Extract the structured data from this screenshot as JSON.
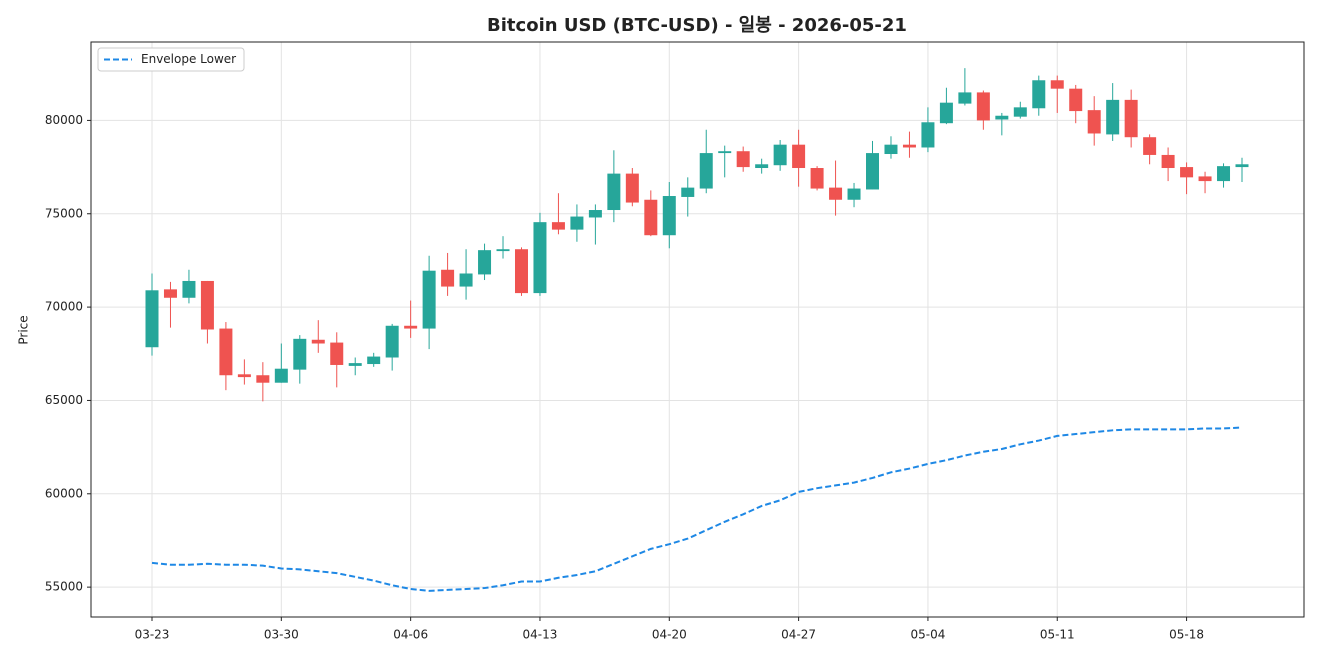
{
  "chart_data": {
    "type": "candlestick",
    "title": "Bitcoin USD (BTC-USD) - 일봉 - 2026-05-21",
    "ylabel": "Price",
    "grid": true,
    "legend": "upper left",
    "up_color": "#26a69a",
    "down_color": "#ef5350",
    "ylim": [
      53400,
      84200
    ],
    "yticks": [
      55000,
      60000,
      65000,
      70000,
      75000,
      80000
    ],
    "xticks": [
      "03-23",
      "03-30",
      "04-06",
      "04-13",
      "04-20",
      "04-27",
      "05-04",
      "05-11",
      "05-18"
    ],
    "x": [
      "03-23",
      "03-24",
      "03-25",
      "03-26",
      "03-27",
      "03-28",
      "03-29",
      "03-30",
      "03-31",
      "04-01",
      "04-02",
      "04-03",
      "04-04",
      "04-05",
      "04-06",
      "04-07",
      "04-08",
      "04-09",
      "04-10",
      "04-11",
      "04-12",
      "04-13",
      "04-14",
      "04-15",
      "04-16",
      "04-17",
      "04-18",
      "04-19",
      "04-20",
      "04-21",
      "04-22",
      "04-23",
      "04-24",
      "04-25",
      "04-26",
      "04-27",
      "04-28",
      "04-29",
      "04-30",
      "05-01",
      "05-02",
      "05-03",
      "05-04",
      "05-05",
      "05-06",
      "05-07",
      "05-08",
      "05-09",
      "05-10",
      "05-11",
      "05-12",
      "05-13",
      "05-14",
      "05-15",
      "05-16",
      "05-17",
      "05-18",
      "05-19",
      "05-20",
      "05-21"
    ],
    "open": [
      67850,
      70950,
      70500,
      71400,
      68850,
      66400,
      66350,
      65950,
      66650,
      68250,
      68100,
      66850,
      66950,
      67300,
      69000,
      68850,
      72000,
      71100,
      71750,
      73000,
      73100,
      70750,
      74550,
      74150,
      74800,
      75200,
      77150,
      75750,
      73850,
      75900,
      76350,
      78250,
      78350,
      77450,
      77600,
      78700,
      77450,
      76400,
      75750,
      76300,
      78200,
      78700,
      78550,
      79850,
      80900,
      81500,
      80050,
      80200,
      80650,
      82150,
      81700,
      80550,
      79250,
      81100,
      79100,
      78150,
      77500,
      77000,
      76750,
      77500
    ],
    "high": [
      71800,
      71350,
      72000,
      71400,
      69200,
      67200,
      67050,
      68050,
      68500,
      69300,
      68650,
      67300,
      67550,
      69100,
      70350,
      72750,
      72900,
      73100,
      73400,
      73800,
      73200,
      75050,
      76100,
      75500,
      75500,
      78400,
      77450,
      76250,
      76700,
      76950,
      79500,
      78650,
      78600,
      77950,
      78950,
      79500,
      77550,
      77850,
      76650,
      78900,
      79150,
      79400,
      80700,
      81750,
      82800,
      81600,
      80400,
      81000,
      82400,
      82400,
      81900,
      81300,
      82000,
      81650,
      79250,
      78550,
      77750,
      77250,
      77700,
      78000
    ],
    "low": [
      67400,
      68900,
      70200,
      68050,
      65550,
      65850,
      64950,
      65950,
      65900,
      67550,
      65700,
      66350,
      66800,
      66600,
      68350,
      67750,
      70600,
      70400,
      71450,
      72600,
      70600,
      70600,
      73900,
      73500,
      73350,
      74550,
      75400,
      73800,
      73150,
      74850,
      76100,
      76950,
      77250,
      77150,
      77300,
      76450,
      76250,
      74900,
      75350,
      76300,
      77950,
      78000,
      78300,
      79800,
      80800,
      79500,
      79200,
      80100,
      80250,
      80400,
      79850,
      78650,
      78900,
      78550,
      77650,
      76750,
      76050,
      76100,
      76400,
      76700
    ],
    "close": [
      70900,
      70500,
      71400,
      68800,
      66350,
      66250,
      65950,
      66700,
      68300,
      68050,
      66900,
      67000,
      67350,
      69000,
      68850,
      71950,
      71100,
      71800,
      73050,
      73100,
      70750,
      74550,
      74150,
      74850,
      75200,
      77150,
      75600,
      73850,
      75950,
      76400,
      78250,
      78350,
      77500,
      77650,
      78700,
      77450,
      76350,
      75750,
      76350,
      78250,
      78700,
      78550,
      79900,
      80950,
      81500,
      80000,
      80250,
      80700,
      82150,
      81700,
      80500,
      79300,
      81100,
      79100,
      78150,
      77450,
      76950,
      76750,
      77550,
      77650
    ],
    "series": [
      {
        "name": "Envelope Lower",
        "color": "#1e88e5",
        "style": "dashed",
        "values": [
          56300,
          56200,
          56200,
          56250,
          56200,
          56200,
          56150,
          56000,
          55950,
          55850,
          55750,
          55550,
          55350,
          55100,
          54900,
          54800,
          54850,
          54900,
          54950,
          55100,
          55300,
          55300,
          55500,
          55650,
          55850,
          56250,
          56650,
          57050,
          57300,
          57600,
          58050,
          58500,
          58900,
          59350,
          59650,
          60100,
          60300,
          60450,
          60600,
          60850,
          61150,
          61350,
          61600,
          61800,
          62050,
          62250,
          62400,
          62650,
          62850,
          63100,
          63200,
          63300,
          63400,
          63450,
          63450,
          63450,
          63450,
          63500,
          63500,
          63550
        ]
      }
    ]
  }
}
